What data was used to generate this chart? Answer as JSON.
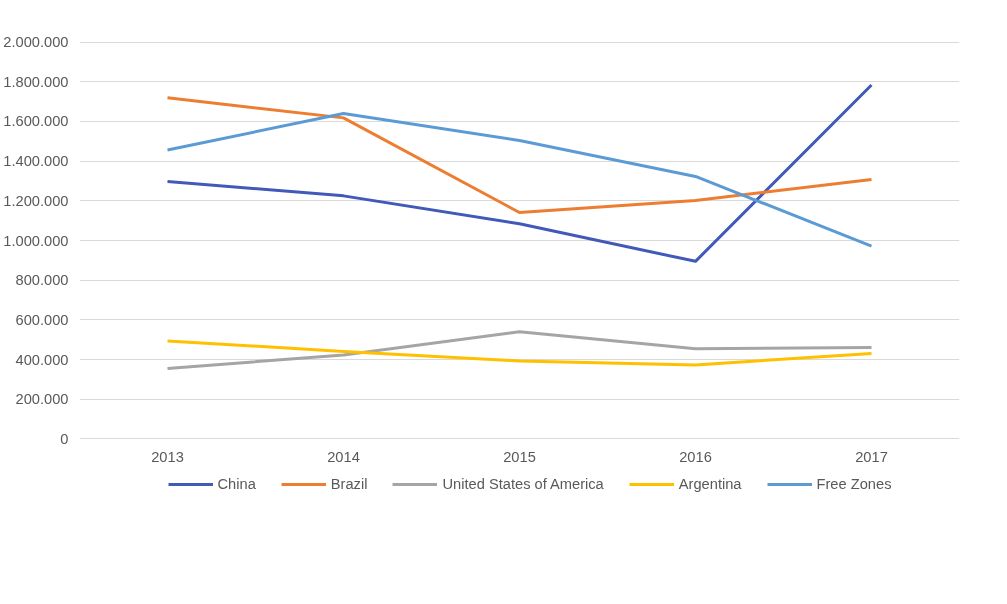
{
  "chart_data": {
    "type": "line",
    "categories": [
      "2013",
      "2014",
      "2015",
      "2016",
      "2017"
    ],
    "series": [
      {
        "name": "China",
        "color": "#4159b8",
        "values": [
          1297000,
          1225000,
          1084000,
          895000,
          1784000
        ]
      },
      {
        "name": "Brazil",
        "color": "#ed7d31",
        "values": [
          1719000,
          1618000,
          1141000,
          1202000,
          1308000
        ]
      },
      {
        "name": "United States of America",
        "color": "#a5a5a5",
        "values": [
          355000,
          423000,
          540000,
          454000,
          461000
        ]
      },
      {
        "name": "Argentina",
        "color": "#ffc000",
        "values": [
          494000,
          441000,
          393000,
          373000,
          431000
        ]
      },
      {
        "name": "Free Zones",
        "color": "#5b9bd5",
        "values": [
          1456000,
          1640000,
          1504000,
          1323000,
          972000
        ]
      }
    ],
    "ylim": [
      0,
      2000000
    ],
    "yticks": [
      {
        "value": 0,
        "label": "0"
      },
      {
        "value": 200000,
        "label": "200.000"
      },
      {
        "value": 400000,
        "label": "400.000"
      },
      {
        "value": 600000,
        "label": "600.000"
      },
      {
        "value": 800000,
        "label": "800.000"
      },
      {
        "value": 1000000,
        "label": "1.000.000"
      },
      {
        "value": 1200000,
        "label": "1.200.000"
      },
      {
        "value": 1400000,
        "label": "1.400.000"
      },
      {
        "value": 1600000,
        "label": "1.600.000"
      },
      {
        "value": 1800000,
        "label": "1.800.000"
      },
      {
        "value": 2000000,
        "label": "2.000.000"
      }
    ],
    "grid": "y",
    "legend": "bottom",
    "marker": "none",
    "line_style": "solid"
  }
}
